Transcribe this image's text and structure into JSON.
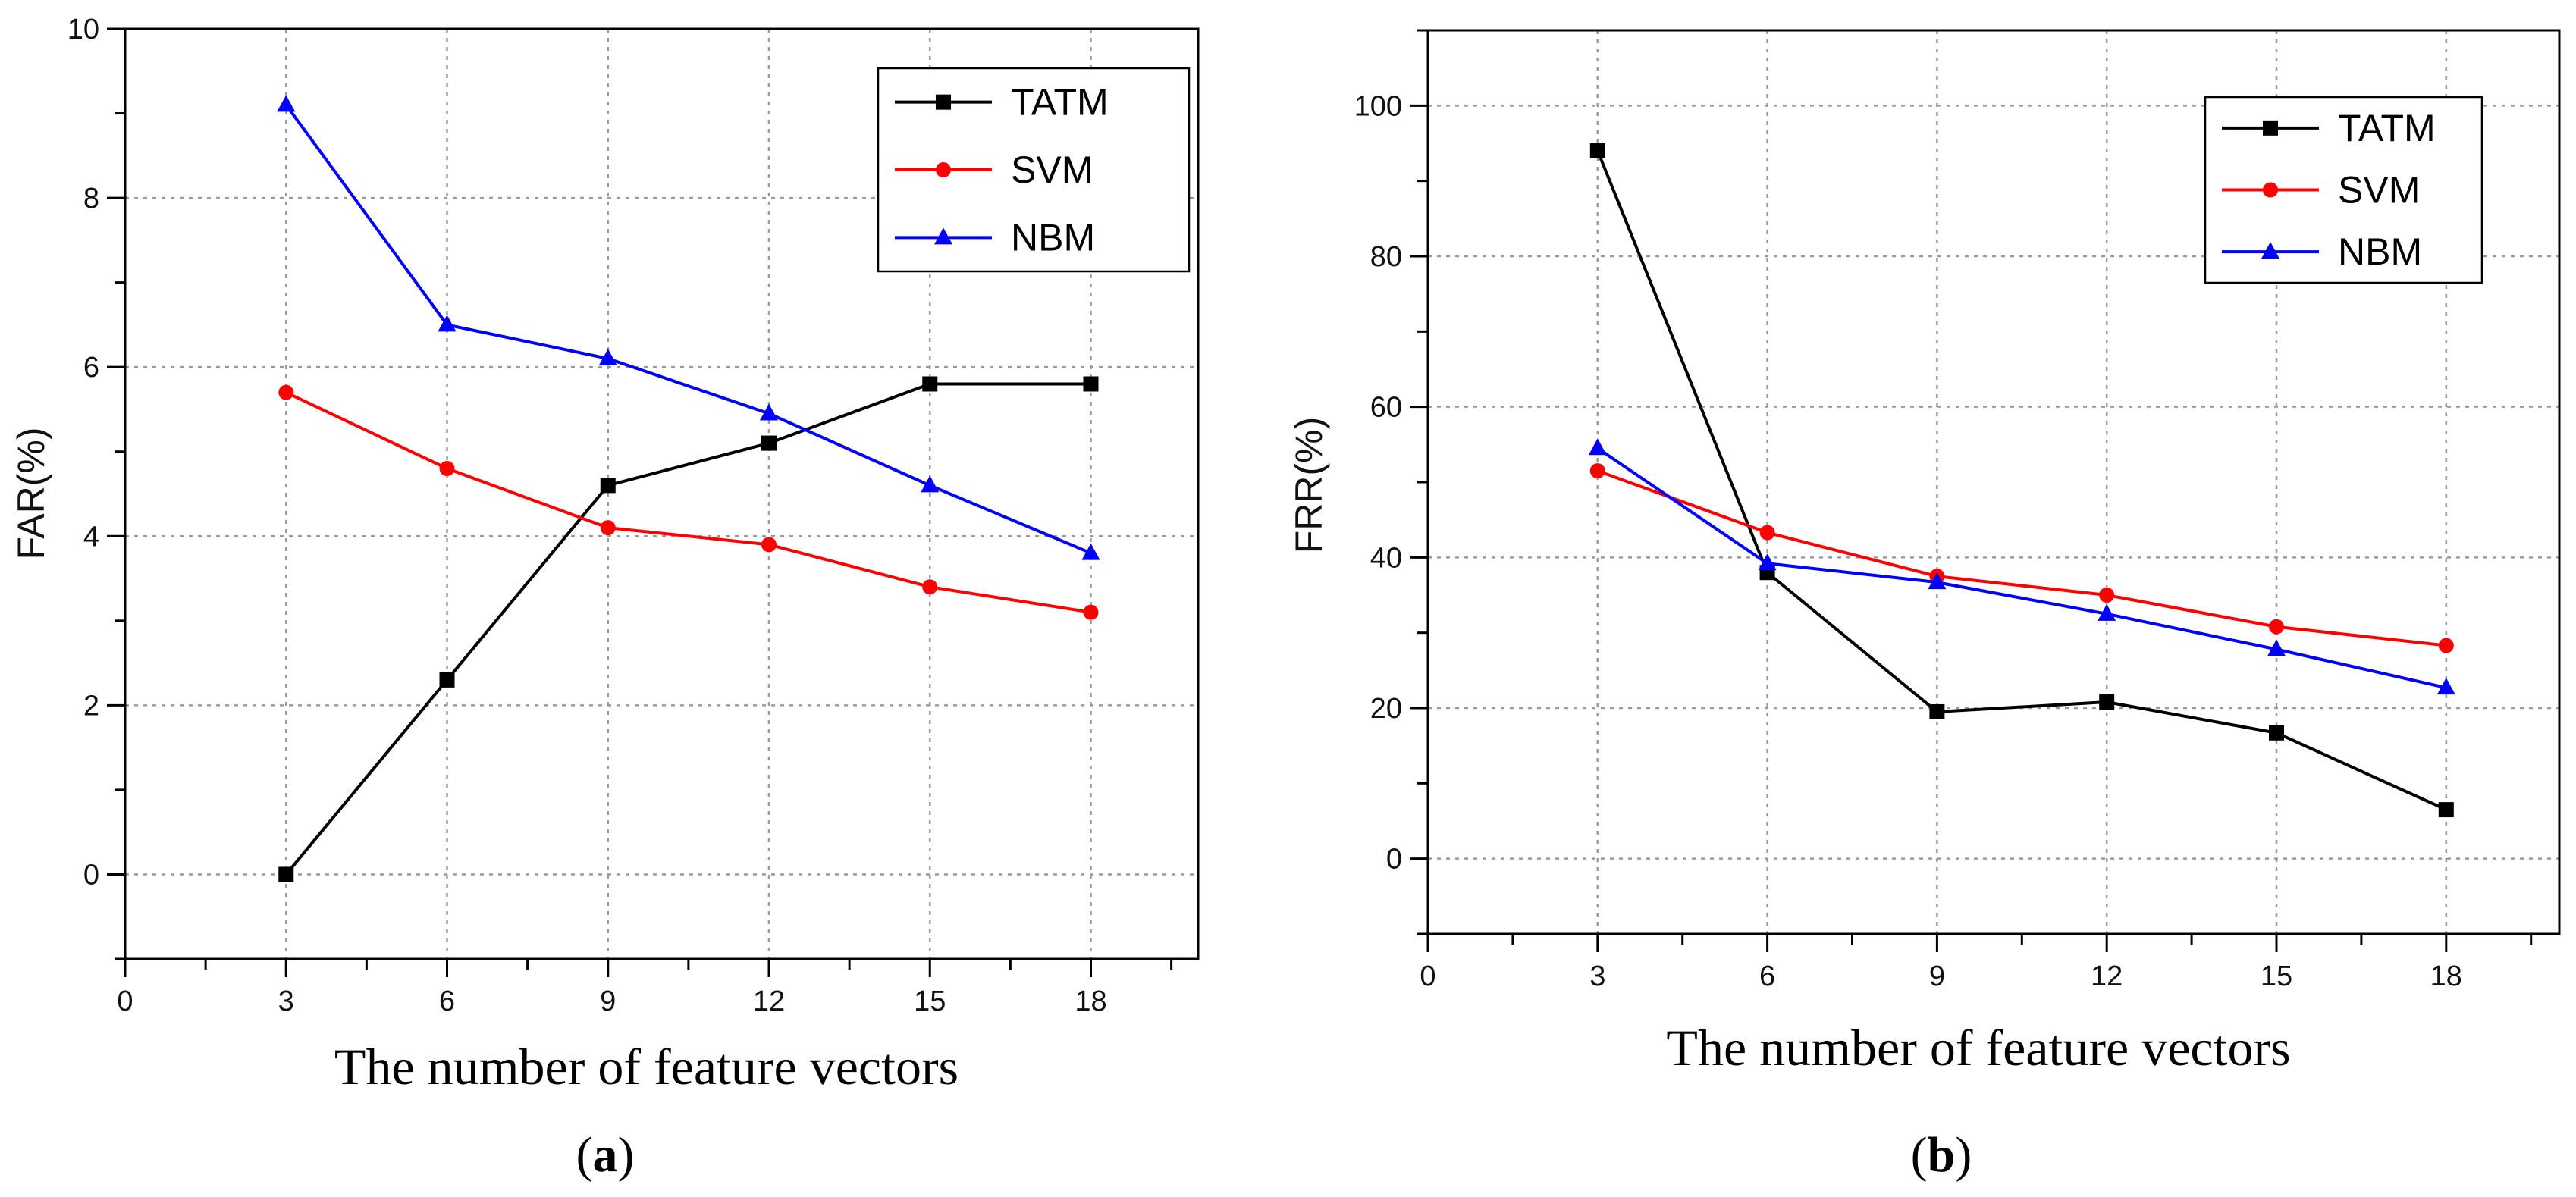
{
  "chart_data": [
    {
      "id": "a",
      "type": "line",
      "subfigure_label": "a",
      "xlabel": "The number of feature vectors",
      "ylabel": "FAR(%)",
      "xlim": [
        0,
        20
      ],
      "ylim": [
        -1,
        10
      ],
      "x_ticks": [
        0,
        3,
        6,
        9,
        12,
        15,
        18
      ],
      "y_ticks": [
        0,
        2,
        4,
        6,
        8,
        10
      ],
      "grid": true,
      "legend_position": "top-right",
      "x": [
        3,
        6,
        9,
        12,
        15,
        18
      ],
      "series": [
        {
          "name": "TATM",
          "color": "#000000",
          "marker": "square",
          "values": [
            0.0,
            2.3,
            4.6,
            5.1,
            5.8,
            5.8
          ]
        },
        {
          "name": "SVM",
          "color": "#ff0000",
          "marker": "circle",
          "values": [
            5.7,
            4.8,
            4.1,
            3.9,
            3.4,
            3.1
          ]
        },
        {
          "name": "NBM",
          "color": "#0000ff",
          "marker": "triangle",
          "values": [
            9.1,
            6.5,
            6.1,
            5.45,
            4.6,
            3.8
          ]
        }
      ]
    },
    {
      "id": "b",
      "type": "line",
      "subfigure_label": "b",
      "xlabel": "The number of feature vectors",
      "ylabel": "FRR(%)",
      "xlim": [
        0,
        20
      ],
      "ylim": [
        -10,
        110
      ],
      "x_ticks": [
        0,
        3,
        6,
        9,
        12,
        15,
        18
      ],
      "y_ticks": [
        0,
        20,
        40,
        60,
        80,
        100
      ],
      "grid": true,
      "legend_position": "top-right",
      "x": [
        3,
        6,
        9,
        12,
        15,
        18
      ],
      "series": [
        {
          "name": "TATM",
          "color": "#000000",
          "marker": "square",
          "values": [
            94,
            38,
            19.5,
            20.8,
            16.7,
            6.5
          ]
        },
        {
          "name": "SVM",
          "color": "#ff0000",
          "marker": "circle",
          "values": [
            51.5,
            43.3,
            37.5,
            35,
            30.8,
            28.3
          ]
        },
        {
          "name": "NBM",
          "color": "#0000ff",
          "marker": "triangle",
          "values": [
            54.5,
            39.2,
            36.7,
            32.5,
            27.8,
            22.7
          ]
        }
      ]
    }
  ]
}
